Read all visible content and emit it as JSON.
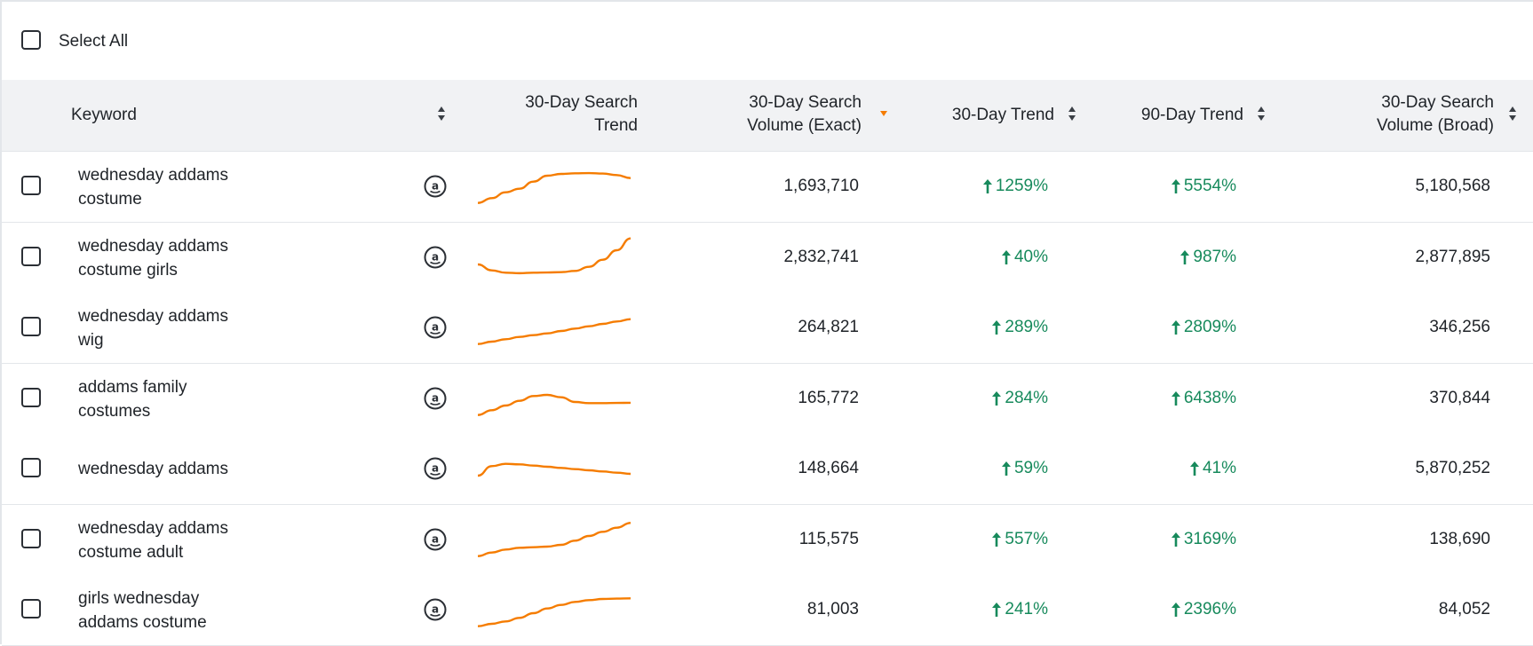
{
  "select_all_label": "Select All",
  "columns": {
    "keyword": "Keyword",
    "search_trend_line1": "30-Day Search",
    "search_trend_line2": "Trend",
    "volume_exact_line1": "30-Day Search",
    "volume_exact_line2": "Volume (Exact)",
    "trend30": "30-Day Trend",
    "trend90": "90-Day Trend",
    "volume_broad_line1": "30-Day Search",
    "volume_broad_line2": "Volume (Broad)"
  },
  "colors": {
    "accent_orange": "#f57c00",
    "trend_green": "#178a5c",
    "header_bg": "#f1f2f4"
  },
  "icons": {
    "marketplace": "amazon-icon",
    "sort": "sort-arrows-icon",
    "sorted_desc": "sort-desc-icon",
    "trend_up": "arrow-up-icon"
  },
  "rows": [
    {
      "keyword_line1": "wednesday addams",
      "keyword_line2": "costume",
      "volume_exact": "1,693,710",
      "trend30": "1259%",
      "trend90": "5554%",
      "volume_broad": "5,180,568",
      "spark": [
        4,
        8,
        13,
        16,
        22,
        27,
        28.5,
        29,
        29.2,
        28.8,
        27.5,
        25
      ]
    },
    {
      "keyword_line1": "wednesday addams",
      "keyword_line2": "costume girls",
      "volume_exact": "2,832,741",
      "trend30": "40%",
      "trend90": "987%",
      "volume_broad": "2,877,895",
      "spark": [
        12,
        7,
        5,
        4.6,
        5,
        5.2,
        5.5,
        6.5,
        10,
        16,
        24,
        34
      ]
    },
    {
      "keyword_line1": "wednesday addams",
      "keyword_line2": "wig",
      "volume_exact": "264,821",
      "trend30": "289%",
      "trend90": "2809%",
      "volume_broad": "346,256",
      "spark": [
        4,
        6,
        8,
        10,
        11.5,
        13,
        15,
        17,
        19,
        21,
        23,
        25
      ]
    },
    {
      "keyword_line1": "addams family",
      "keyword_line2": "costumes",
      "volume_exact": "165,772",
      "trend30": "284%",
      "trend90": "6438%",
      "volume_broad": "370,844",
      "spark": [
        4,
        8,
        12,
        16,
        20,
        21,
        19,
        15,
        14,
        14,
        14.2,
        14.3
      ]
    },
    {
      "keyword_line1": "wednesday addams",
      "keyword_line2": "",
      "volume_exact": "148,664",
      "trend30": "59%",
      "trend90": "41%",
      "volume_broad": "5,870,252",
      "spark": [
        12,
        20,
        22,
        21.5,
        20.5,
        19.5,
        18.5,
        17.5,
        16.5,
        15.5,
        14.5,
        13.5
      ]
    },
    {
      "keyword_line1": "wednesday addams",
      "keyword_line2": "costume adult",
      "volume_exact": "115,575",
      "trend30": "557%",
      "trend90": "3169%",
      "volume_broad": "138,690",
      "spark": [
        4,
        7,
        9.5,
        11,
        11.5,
        12,
        13.5,
        17,
        21,
        24.5,
        28,
        32
      ]
    },
    {
      "keyword_line1": "girls wednesday",
      "keyword_line2": "addams costume",
      "volume_exact": "81,003",
      "trend30": "241%",
      "trend90": "2396%",
      "volume_broad": "84,052",
      "spark": [
        4,
        6,
        8,
        11,
        15,
        19,
        22,
        24.5,
        26,
        27,
        27.3,
        27.5
      ]
    }
  ]
}
